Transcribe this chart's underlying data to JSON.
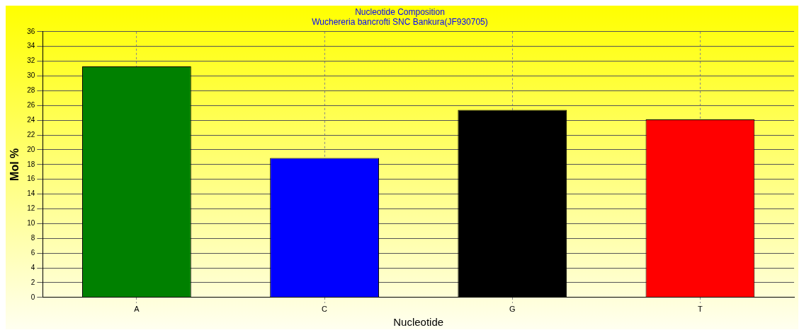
{
  "chart_data": {
    "type": "bar",
    "title": "Nucleotide Composition",
    "subtitle": "Wuchereria bancrofti SNC Bankura(JF930705)",
    "xlabel": "Nucleotide",
    "ylabel": "Mol %",
    "categories": [
      "A",
      "C",
      "G",
      "T"
    ],
    "values": [
      31.3,
      18.9,
      25.4,
      24.1
    ],
    "colors": [
      "#008000",
      "#0000ff",
      "#000000",
      "#ff0000"
    ],
    "ylim": [
      0,
      36
    ],
    "yticks": [
      0,
      2,
      4,
      6,
      8,
      10,
      12,
      14,
      16,
      18,
      20,
      22,
      24,
      26,
      28,
      30,
      32,
      34,
      36
    ],
    "grid": true,
    "legend": false
  }
}
